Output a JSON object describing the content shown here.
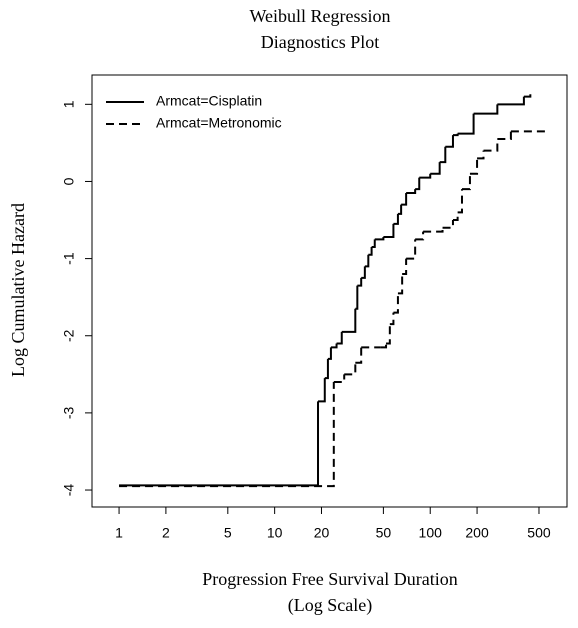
{
  "chart_data": {
    "type": "step",
    "title": [
      "Weibull Regression",
      "Diagnostics Plot"
    ],
    "x_label": [
      "Progression Free Survival Duration",
      "(Log Scale)"
    ],
    "y_label": "Log Cumulative Hazard",
    "log_x": true,
    "xlim": [
      0.67,
      757
    ],
    "ylim": [
      -4.22,
      1.38
    ],
    "xticks": [
      1,
      2,
      5,
      10,
      20,
      50,
      100,
      200,
      500
    ],
    "yticks": [
      -4,
      -3,
      -2,
      -1,
      0,
      1
    ],
    "legend": "top-left",
    "series": [
      {
        "name": "Armcat=Cisplatin",
        "color": "#000000",
        "dash": "solid",
        "x": [
          1,
          19,
          21,
          22,
          23,
          25,
          27,
          33,
          34,
          36,
          38,
          40,
          42,
          44,
          50,
          58,
          62,
          65,
          70,
          80,
          85,
          100,
          115,
          125,
          140,
          150,
          190,
          270,
          400,
          440
        ],
        "values": [
          -3.94,
          -2.85,
          -2.55,
          -2.3,
          -2.15,
          -2.1,
          -1.95,
          -1.65,
          -1.35,
          -1.25,
          -1.1,
          -0.95,
          -0.85,
          -0.75,
          -0.72,
          -0.55,
          -0.42,
          -0.3,
          -0.15,
          -0.1,
          0.05,
          0.1,
          0.25,
          0.45,
          0.6,
          0.62,
          0.88,
          1.0,
          1.1,
          1.13
        ]
      },
      {
        "name": "Armcat=Metronomic",
        "color": "#000000",
        "dash": "dashed",
        "x": [
          1,
          24,
          28,
          33,
          36,
          48,
          52,
          55,
          58,
          62,
          66,
          70,
          80,
          90,
          120,
          140,
          150,
          160,
          180,
          200,
          220,
          270,
          330,
          560
        ],
        "values": [
          -3.95,
          -2.6,
          -2.5,
          -2.35,
          -2.15,
          -2.15,
          -2.1,
          -1.85,
          -1.7,
          -1.45,
          -1.2,
          -1.0,
          -0.75,
          -0.65,
          -0.6,
          -0.5,
          -0.4,
          -0.1,
          0.1,
          0.3,
          0.4,
          0.55,
          0.65,
          0.65
        ]
      }
    ]
  }
}
